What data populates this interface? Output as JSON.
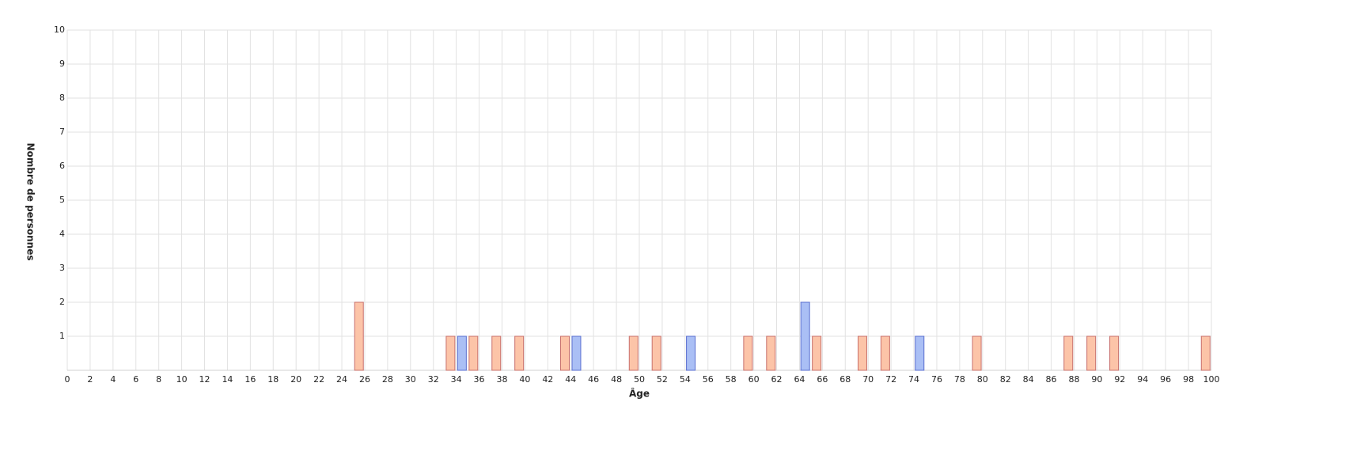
{
  "chart_data": {
    "type": "bar",
    "xlabel": "Âge",
    "ylabel": "Nombre de personnes",
    "xlim": [
      0,
      100
    ],
    "xticks": [
      0,
      2,
      4,
      6,
      8,
      10,
      12,
      14,
      16,
      18,
      20,
      22,
      24,
      26,
      28,
      30,
      32,
      34,
      36,
      38,
      40,
      42,
      44,
      46,
      48,
      50,
      52,
      54,
      56,
      58,
      60,
      62,
      64,
      66,
      68,
      70,
      72,
      74,
      76,
      78,
      80,
      82,
      84,
      86,
      88,
      90,
      92,
      94,
      96,
      98,
      100
    ],
    "ylim": [
      0,
      10
    ],
    "yticks": [
      1,
      2,
      3,
      4,
      5,
      6,
      7,
      8,
      9,
      10
    ],
    "grid": true,
    "series": [
      {
        "color": "#fcc4a8",
        "edgecolor": "#c8706c",
        "x": [
          25,
          33,
          35,
          37,
          39,
          43,
          49,
          51,
          59,
          61,
          65,
          69,
          71,
          79,
          87,
          89,
          91,
          99
        ],
        "values": [
          2,
          1,
          1,
          1,
          1,
          1,
          1,
          1,
          1,
          1,
          1,
          1,
          1,
          1,
          1,
          1,
          1,
          1
        ]
      },
      {
        "color": "#aabff5",
        "edgecolor": "#5a6fd0",
        "x": [
          34,
          44,
          54,
          64,
          74
        ],
        "values": [
          1,
          1,
          1,
          2,
          1
        ]
      }
    ]
  }
}
